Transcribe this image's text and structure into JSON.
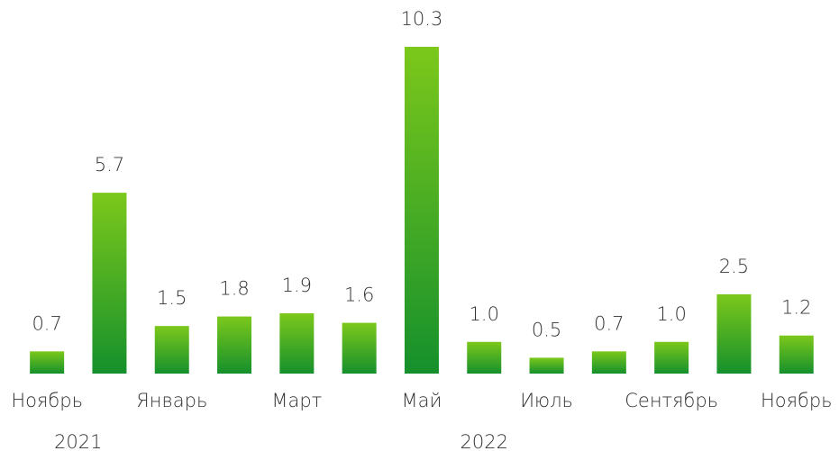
{
  "chart_data": {
    "type": "bar",
    "categories": [
      "Ноябрь",
      null,
      "Январь",
      null,
      "Март",
      null,
      "Май",
      null,
      "Июль",
      null,
      "Сентябрь",
      null,
      "Ноябрь"
    ],
    "values": [
      0.7,
      5.7,
      1.5,
      1.8,
      1.9,
      1.6,
      10.3,
      1.0,
      0.5,
      0.7,
      1.0,
      2.5,
      1.2
    ],
    "value_labels": [
      "0.7",
      "5.7",
      "1.5",
      "1.8",
      "1.9",
      "1.6",
      "10.3",
      "1.0",
      "0.5",
      "0.7",
      "1.0",
      "2.5",
      "1.2"
    ],
    "gradient": [
      "#7cc81b",
      "#15902c"
    ],
    "annotations": [
      "2021",
      "2022"
    ]
  }
}
